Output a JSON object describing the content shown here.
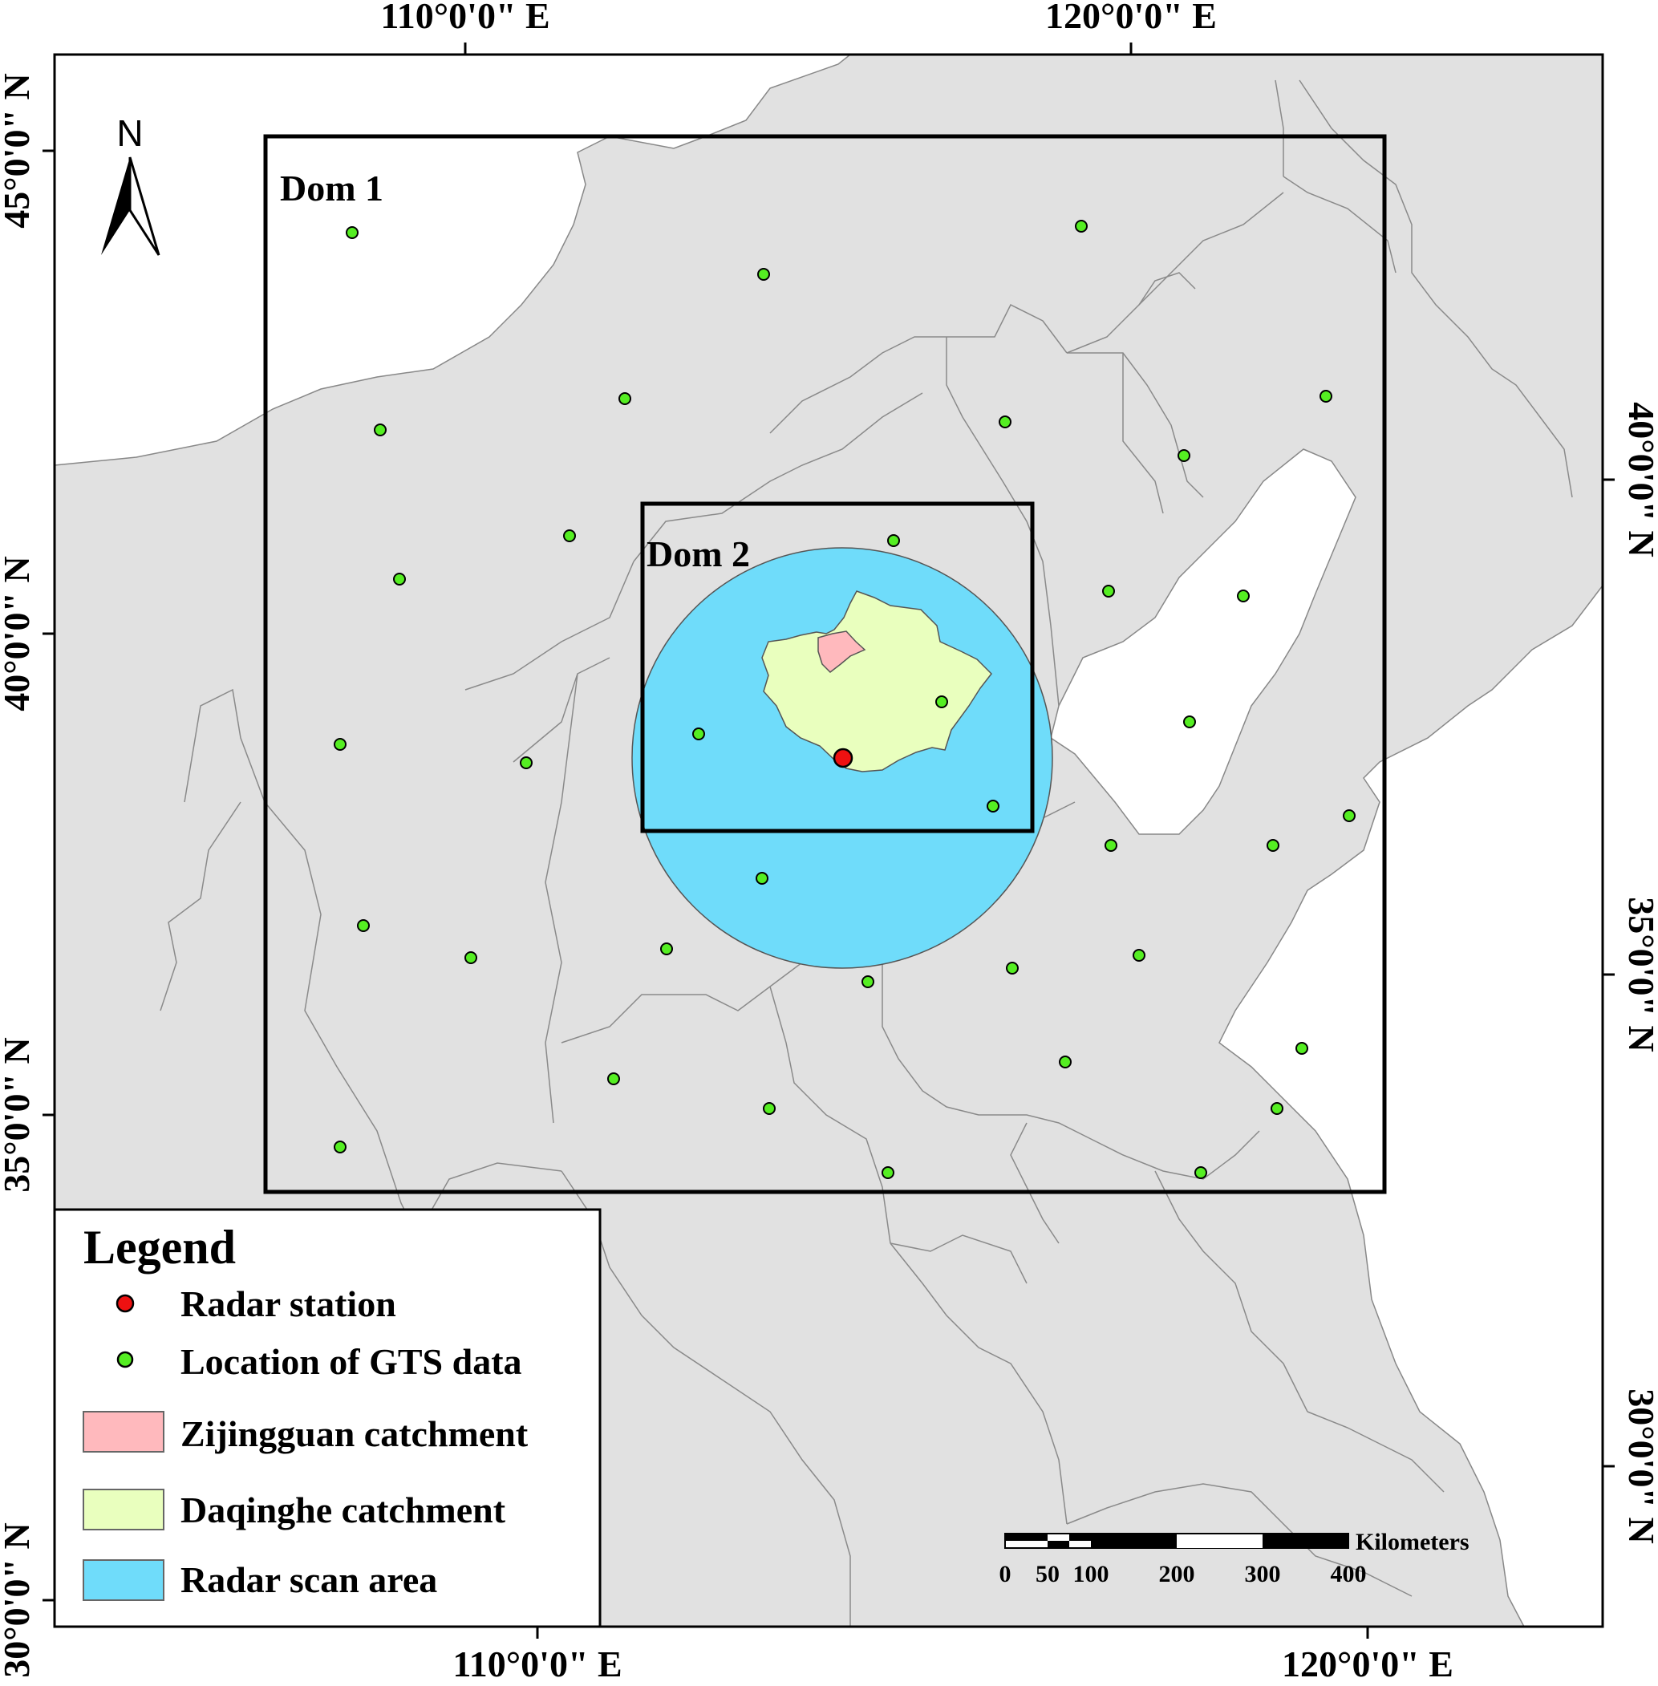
{
  "coord_labels": {
    "top": [
      "110°0'0\" E",
      "120°0'0\" E"
    ],
    "bottom": [
      "110°0'0\" E",
      "120°0'0\" E"
    ],
    "left": [
      "45°0'0\" N",
      "40°0'0\" N",
      "35°0'0\" N",
      "30°0'0\" N"
    ],
    "right": [
      "40°0'0\" N",
      "35°0'0\" N",
      "30°0'0\" N"
    ]
  },
  "domains": [
    "Dom 1",
    "Dom 2"
  ],
  "north_arrow": {
    "label": "N",
    "icon": "north-arrow-icon"
  },
  "legend": {
    "title": "Legend",
    "items": [
      {
        "label": "Radar station",
        "symbol": "red-point",
        "color": "#ee1111"
      },
      {
        "label": "Location of GTS data",
        "symbol": "green-point",
        "color": "#55ee22"
      },
      {
        "label": "Zijingguan catchment",
        "symbol": "patch",
        "color": "#ffb9bd"
      },
      {
        "label": "Daqinghe catchment",
        "symbol": "patch",
        "color": "#e9ffbe"
      },
      {
        "label": "Radar scan area",
        "symbol": "patch",
        "color": "#6fdcfa"
      }
    ]
  },
  "scale_bar": {
    "unit": "Kilometers",
    "ticks": [
      "0",
      "50",
      "100",
      "200",
      "300",
      "400"
    ]
  },
  "colors": {
    "land": "#e1e1e1",
    "sea": "#ffffff",
    "radar_area": "#6fdcfa",
    "daqinghe": "#e9ffbe",
    "zijingguan": "#ffb9bd",
    "gts_point": "#55ee22",
    "radar_point": "#ee1111"
  }
}
